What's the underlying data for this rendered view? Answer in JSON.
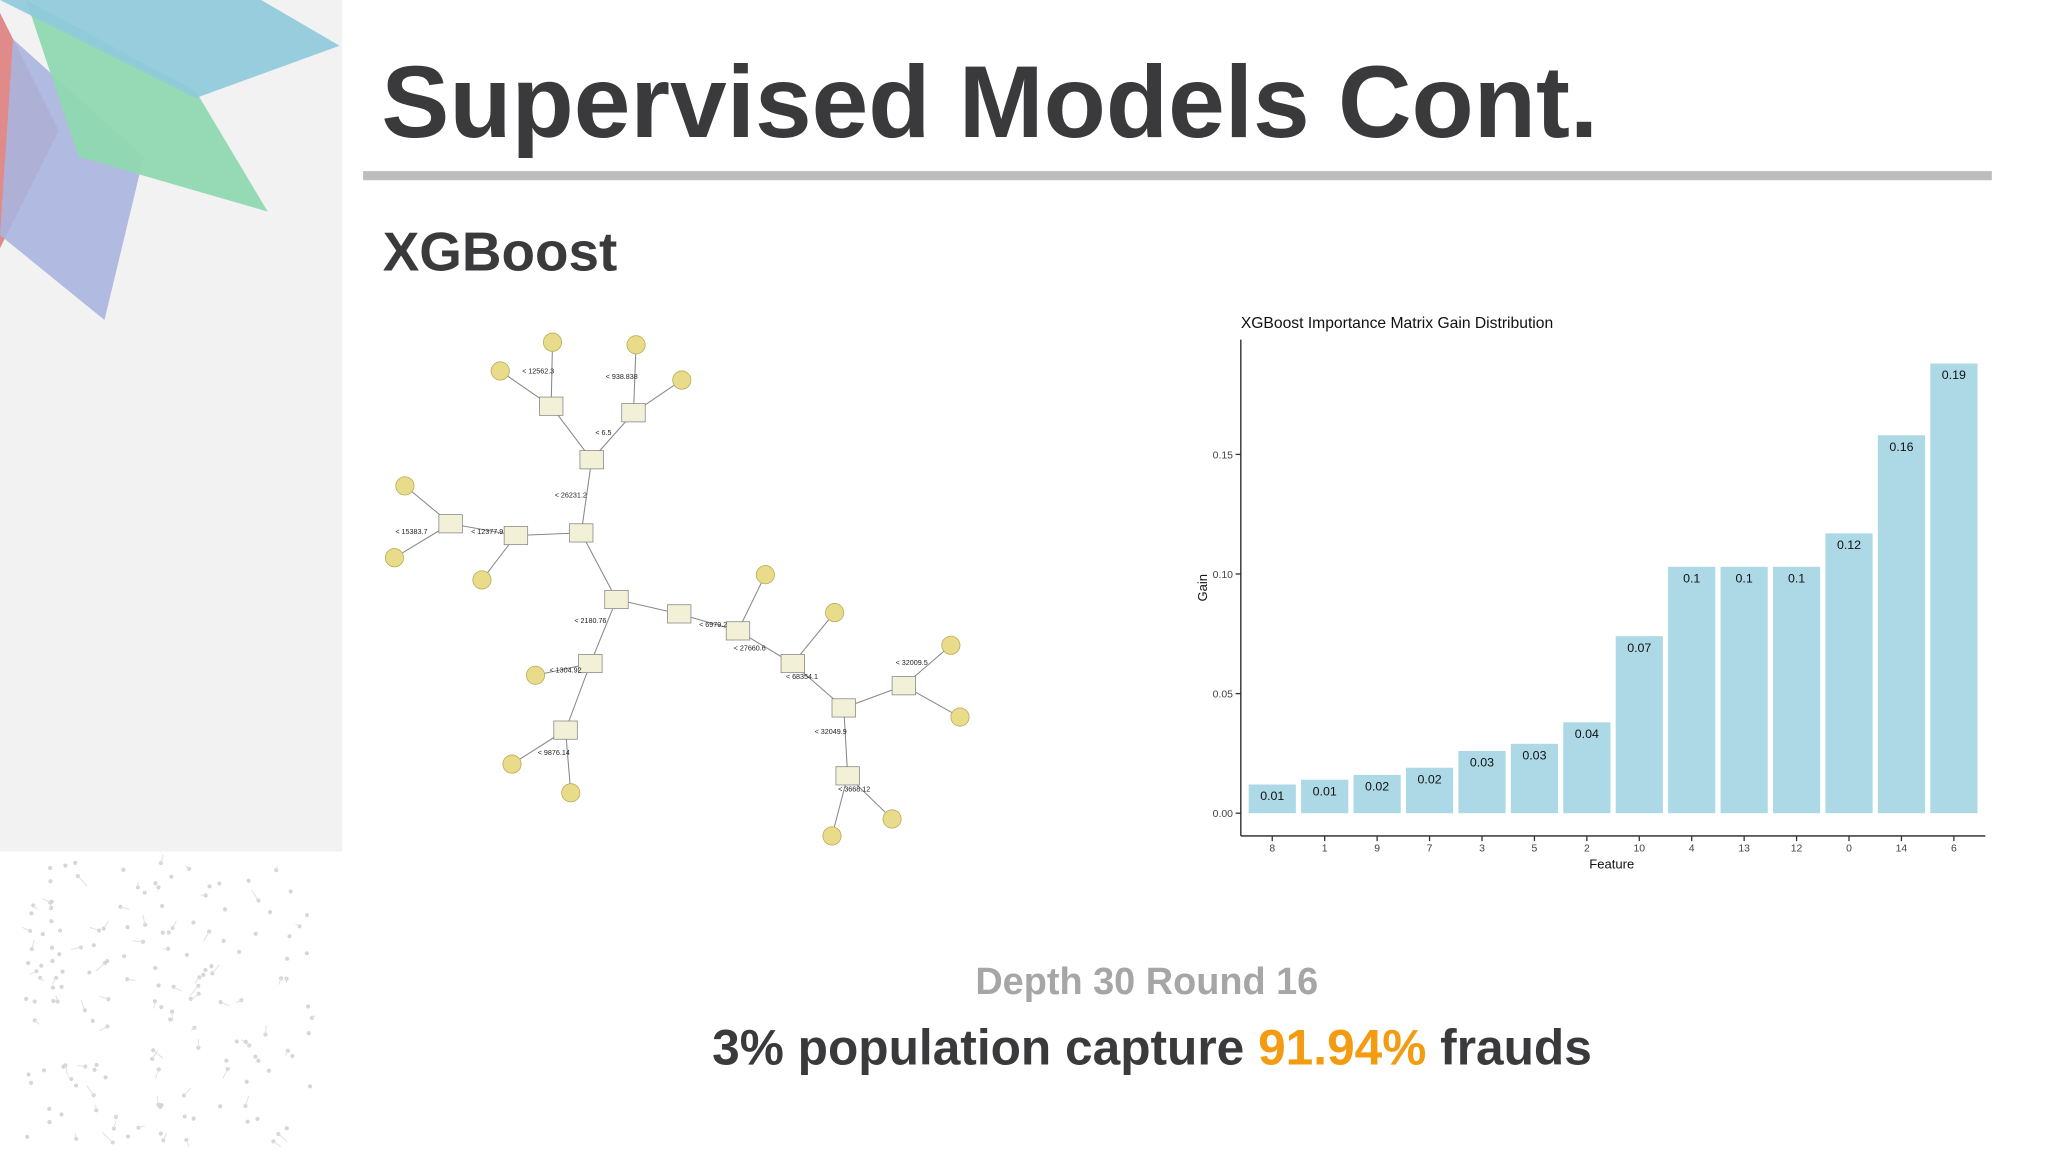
{
  "header": {
    "title": "Supervised Models Cont.",
    "subtitle": "XGBoost"
  },
  "tree": {
    "edge_labels": [
      "< 12562.3",
      "< 938.838",
      "< 6.5",
      "< 26231.2",
      "< 15383.7",
      "< 12377.9",
      "< 2180.76",
      "< 6979.2",
      "< 27660.6",
      "< 1304.92",
      "< 68354.1",
      "< 32009.5",
      "< 32049.9",
      "< 9876.14",
      "< 3668.12"
    ]
  },
  "chart_data": {
    "type": "bar",
    "title": "XGBoost Importance Matrix Gain Distribution",
    "x_label": "Feature",
    "y_label": "Gain",
    "categories": [
      "8",
      "1",
      "9",
      "7",
      "3",
      "5",
      "2",
      "10",
      "4",
      "13",
      "12",
      "0",
      "14",
      "6"
    ],
    "values": [
      0.012,
      0.014,
      0.016,
      0.019,
      0.026,
      0.029,
      0.038,
      0.074,
      0.103,
      0.103,
      0.103,
      0.117,
      0.158,
      0.188
    ],
    "value_labels": [
      "0.01",
      "0.01",
      "0.02",
      "0.02",
      "0.03",
      "0.03",
      "0.04",
      "0.07",
      "0.1",
      "0.1",
      "0.1",
      "0.12",
      "0.16",
      "0.19"
    ],
    "color": "#add8e6",
    "ylim": [
      -0.0095,
      0.198
    ],
    "yticks": [
      {
        "value": 0,
        "label": "0.00"
      },
      {
        "value": 0.05,
        "label": "0.05"
      },
      {
        "value": 0.1,
        "label": "0.10"
      },
      {
        "value": 0.15,
        "label": "0.15"
      }
    ],
    "grid": false
  },
  "footer": {
    "line1": "Depth 30 Round 16",
    "line2": [
      "3% population capture ",
      "91.94%",
      " frauds"
    ]
  }
}
